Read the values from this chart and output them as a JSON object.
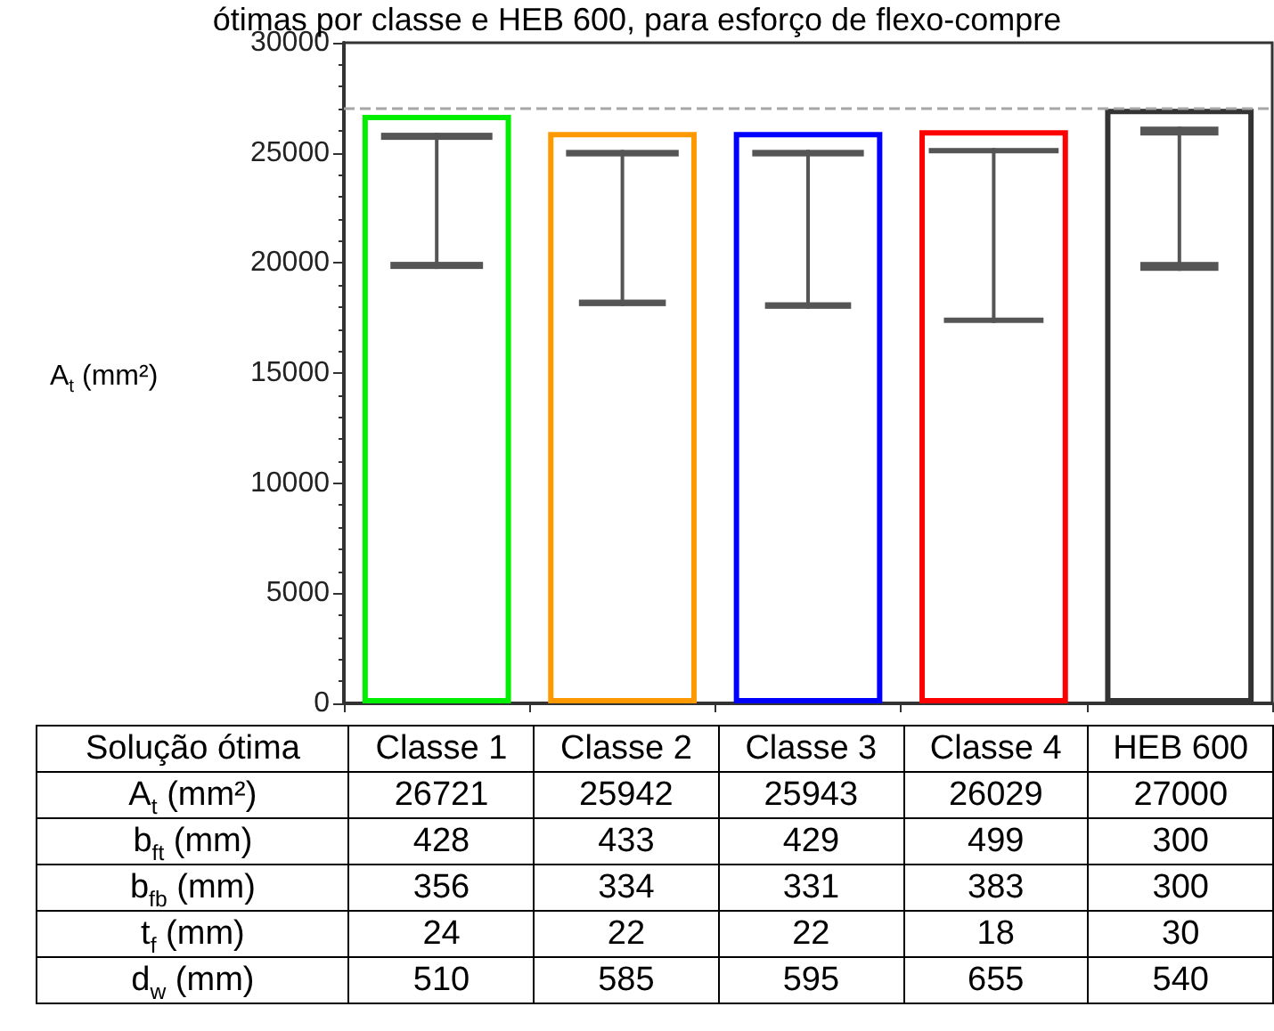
{
  "chart_data": {
    "type": "bar",
    "title": "ótimas por classe e HEB 600, para esforço de flexo-compre",
    "xlabel": "Solução ótima",
    "ylabel": "A$_{t}$ (mm²)",
    "categories": [
      "Classe 1",
      "Classe 2",
      "Classe 3",
      "Classe 4",
      "HEB 600"
    ],
    "series": [
      {
        "colors": [
          "#00ee00",
          "#ff9900",
          "#0000ff",
          "#ff0000",
          "#333333"
        ],
        "values": [
          26721,
          25942,
          25943,
          26029,
          27000
        ]
      }
    ],
    "annotations": [
      "b$_{ft}$ (mm)",
      "428",
      "433",
      "429",
      "499",
      "300",
      "b$_{fb}$ (mm)",
      "356",
      "334",
      "331",
      "383",
      "300",
      "t$_{f}$ (mm)",
      "24",
      "22",
      "22",
      "18",
      "30",
      "d$_{w}$ (mm)",
      "510",
      "585",
      "595",
      "655",
      "540"
    ],
    "ylim": [
      0,
      30000
    ],
    "yticks": [
      0,
      5000,
      10000,
      15000,
      20000,
      25000,
      30000
    ],
    "data_labels": true,
    "tick_labels": "y",
    "ref_lines": [
      {
        "axis": "y",
        "value": 27000,
        "color": "#a6a6a6",
        "line_style": "dashed"
      }
    ]
  }
}
